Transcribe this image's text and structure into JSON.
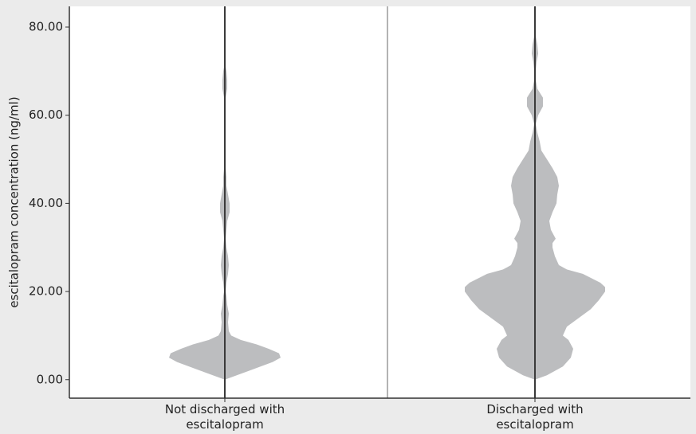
{
  "chart_data": {
    "type": "violin",
    "y_label": "escitalopram concentration (ng/ml)",
    "categories": [
      "Not discharged with escitalopram",
      "Discharged with escitalopram"
    ],
    "ylim": [
      -4.2,
      84.7
    ],
    "yticks": [
      {
        "value": 0,
        "label": "0.00"
      },
      {
        "value": 20,
        "label": "20.00"
      },
      {
        "value": 40,
        "label": "40.00"
      },
      {
        "value": 60,
        "label": "60.00"
      },
      {
        "value": 80,
        "label": "80.00"
      }
    ],
    "color": "#bcbdbf",
    "violins": [
      {
        "y": [
          0,
          2,
          4,
          5,
          6,
          7,
          8,
          9,
          10,
          11,
          13,
          15,
          17,
          19,
          20,
          22,
          24,
          26,
          28,
          30,
          32,
          34,
          36,
          38,
          40,
          42,
          44,
          46,
          48,
          50,
          53,
          62,
          64,
          66,
          68,
          70,
          72
        ],
        "density": [
          0,
          30,
          60,
          70,
          68,
          55,
          40,
          20,
          8,
          5,
          4,
          5,
          3,
          2,
          1,
          2,
          4,
          5,
          4,
          2,
          1,
          2,
          3,
          6,
          6,
          4,
          2,
          2,
          1,
          1,
          0,
          0,
          1,
          3,
          3,
          2,
          0
        ]
      },
      {
        "y": [
          0,
          1,
          3,
          5,
          7,
          9,
          10,
          12,
          14,
          16,
          18,
          20,
          21,
          22,
          24,
          25,
          26,
          28,
          30,
          31,
          32,
          34,
          36,
          38,
          40,
          42,
          44,
          46,
          48,
          50,
          52,
          54,
          56,
          58,
          60,
          62,
          64,
          66,
          68,
          70,
          72,
          74,
          76,
          78,
          80
        ],
        "density": [
          0,
          15,
          35,
          45,
          48,
          42,
          35,
          40,
          55,
          70,
          80,
          88,
          88,
          82,
          60,
          40,
          30,
          25,
          22,
          22,
          26,
          20,
          18,
          22,
          27,
          28,
          30,
          28,
          22,
          15,
          8,
          6,
          3,
          1,
          4,
          10,
          10,
          3,
          1,
          1,
          2,
          4,
          3,
          1,
          0
        ]
      }
    ]
  }
}
